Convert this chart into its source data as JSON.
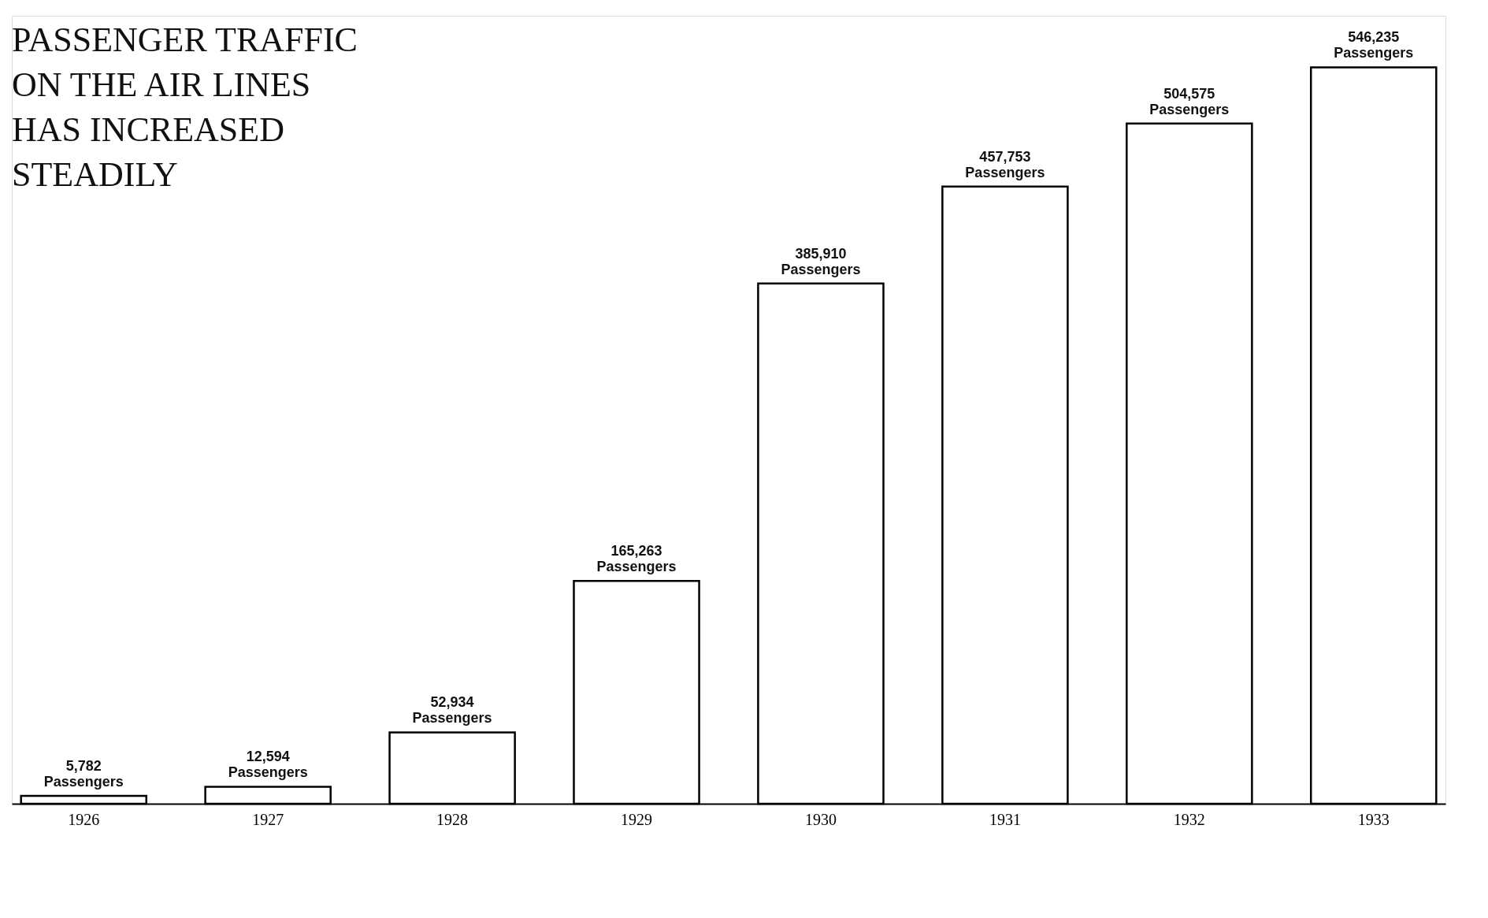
{
  "chart_data": {
    "type": "bar",
    "title": "PASSENGER TRAFFIC ON THE AIR LINES HAS INCREASED STEADILY",
    "categories": [
      "1926",
      "1927",
      "1928",
      "1929",
      "1930",
      "1931",
      "1932",
      "1933"
    ],
    "values": [
      5782,
      12594,
      52934,
      165263,
      385910,
      457753,
      504575,
      546235
    ],
    "value_labels": [
      "5,782 Passengers",
      "12,594 Passengers",
      "52,934 Passengers",
      "165,263 Passengers",
      "385,910 Passengers",
      "457,753 Passengers",
      "504,575 Passengers",
      "546,235 Passengers"
    ],
    "color": "#ffffff",
    "grid": false
  }
}
